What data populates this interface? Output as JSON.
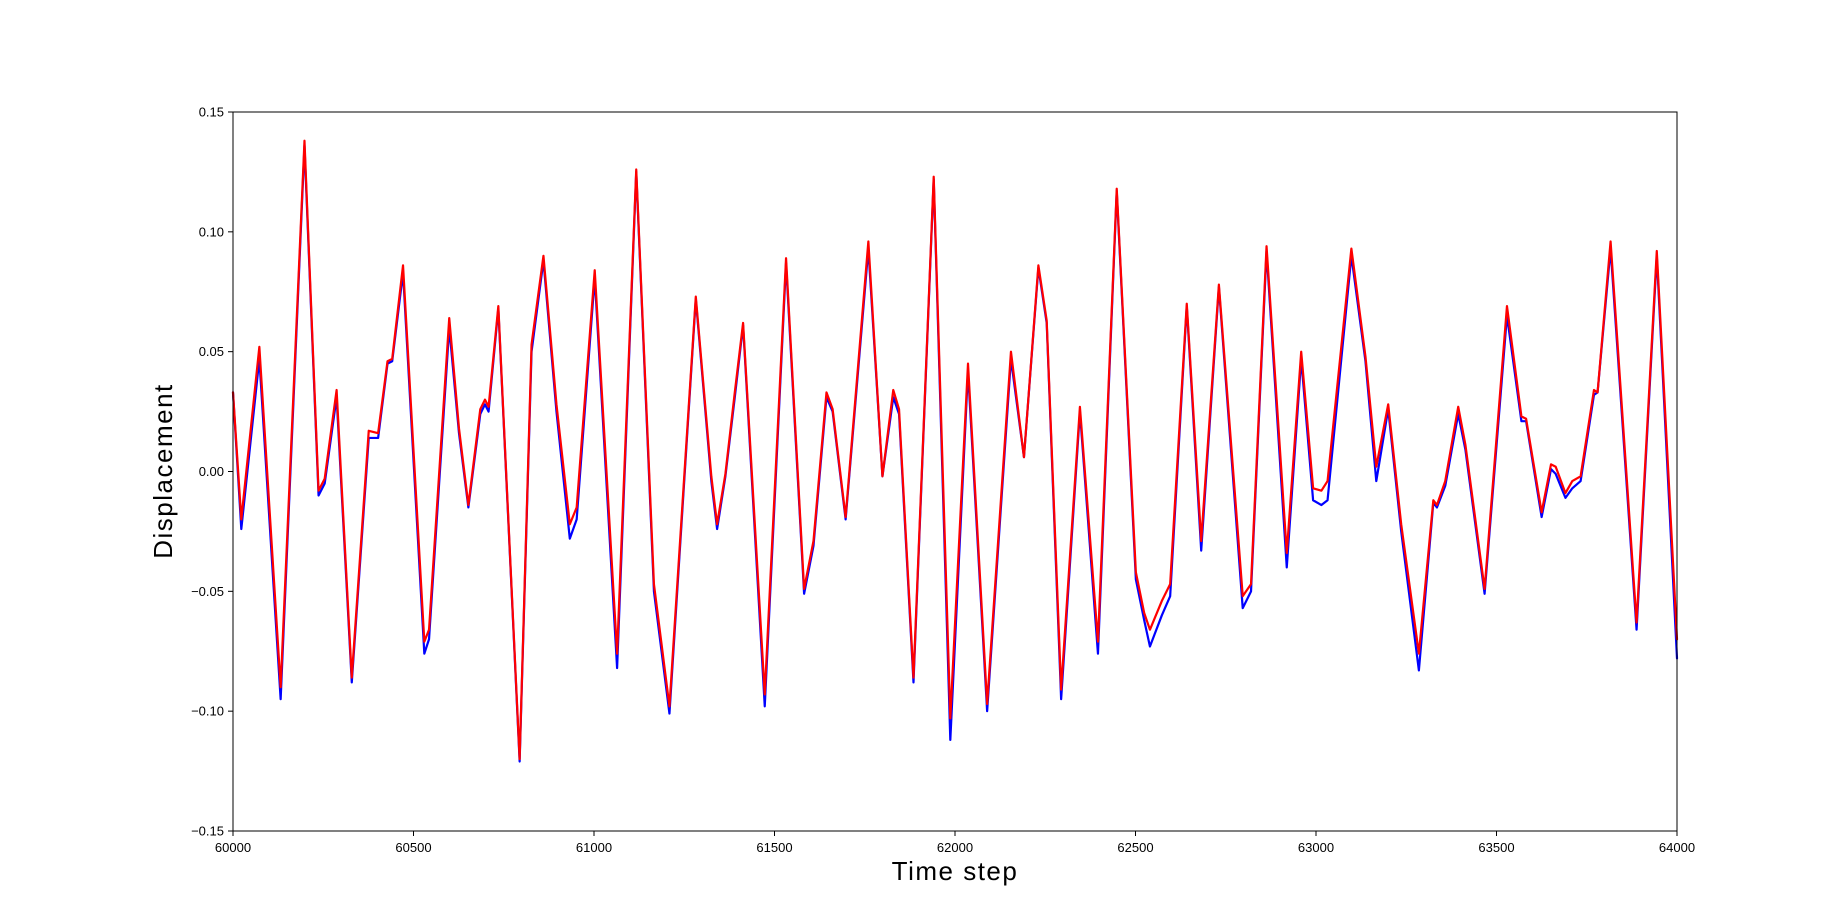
{
  "chart_data": {
    "type": "line",
    "x_label": "Time step",
    "y_label": "Displacement",
    "xlim": [
      60000,
      64000
    ],
    "ylim": [
      -0.15,
      0.15
    ],
    "xticks": [
      60000,
      60500,
      61000,
      61500,
      62000,
      62500,
      63000,
      63500,
      64000
    ],
    "yticks": [
      {
        "value": -0.15,
        "label": "−0.15"
      },
      {
        "value": -0.1,
        "label": "−0.10"
      },
      {
        "value": -0.05,
        "label": "−0.05"
      },
      {
        "value": 0,
        "label": "0.00"
      },
      {
        "value": 0.05,
        "label": "0.05"
      },
      {
        "value": 0.1,
        "label": "0.10"
      },
      {
        "value": 0.15,
        "label": "0.15"
      }
    ],
    "grid": false,
    "x": [
      60000,
      60023,
      60073,
      60132,
      60198,
      60237,
      60254,
      60287,
      60329,
      60376,
      60402,
      60428,
      60441,
      60471,
      60530,
      60543,
      60599,
      60626,
      60652,
      60685,
      60698,
      60708,
      60735,
      60794,
      60827,
      60860,
      60896,
      60933,
      60952,
      61002,
      61064,
      61117,
      61166,
      61209,
      61282,
      61325,
      61341,
      61364,
      61390,
      61413,
      61473,
      61532,
      61582,
      61608,
      61644,
      61661,
      61697,
      61760,
      61799,
      61829,
      61845,
      61885,
      61941,
      61987,
      62036,
      62089,
      62155,
      62191,
      62231,
      62254,
      62294,
      62346,
      62396,
      62448,
      62501,
      62524,
      62540,
      62573,
      62596,
      62642,
      62682,
      62731,
      62797,
      62820,
      62863,
      62919,
      62959,
      62992,
      63015,
      63032,
      63098,
      63137,
      63167,
      63200,
      63236,
      63285,
      63325,
      63335,
      63358,
      63394,
      63414,
      63467,
      63529,
      63569,
      63582,
      63625,
      63651,
      63664,
      63691,
      63710,
      63733,
      63770,
      63780,
      63816,
      63888,
      63944,
      64000
    ],
    "series": [
      {
        "color": "#0000ff",
        "values": [
          0.033,
          -0.024,
          0.047,
          -0.095,
          0.136,
          -0.01,
          -0.005,
          0.031,
          -0.088,
          0.014,
          0.014,
          0.045,
          0.046,
          0.083,
          -0.076,
          -0.07,
          0.06,
          0.016,
          -0.015,
          0.024,
          0.028,
          0.025,
          0.068,
          -0.121,
          0.05,
          0.088,
          0.025,
          -0.028,
          -0.02,
          0.081,
          -0.082,
          0.125,
          -0.05,
          -0.101,
          0.072,
          -0.004,
          -0.024,
          -0.002,
          0.031,
          0.061,
          -0.098,
          0.087,
          -0.051,
          -0.031,
          0.031,
          0.025,
          -0.02,
          0.093,
          -0.002,
          0.031,
          0.024,
          -0.088,
          0.122,
          -0.112,
          0.042,
          -0.1,
          0.047,
          0.006,
          0.085,
          0.062,
          -0.095,
          0.025,
          -0.076,
          0.117,
          -0.045,
          -0.062,
          -0.073,
          -0.06,
          -0.052,
          0.069,
          -0.033,
          0.077,
          -0.057,
          -0.05,
          0.092,
          -0.04,
          0.047,
          -0.012,
          -0.014,
          -0.012,
          0.09,
          0.046,
          -0.004,
          0.026,
          -0.025,
          -0.083,
          -0.013,
          -0.015,
          -0.006,
          0.024,
          0.009,
          -0.051,
          0.065,
          0.021,
          0.021,
          -0.019,
          0.001,
          -0.001,
          -0.011,
          -0.007,
          -0.004,
          0.032,
          0.033,
          0.093,
          -0.066,
          0.09,
          -0.078
        ]
      },
      {
        "color": "#ff0000",
        "values": [
          0.033,
          -0.02,
          0.052,
          -0.09,
          0.138,
          -0.008,
          -0.003,
          0.034,
          -0.086,
          0.017,
          0.016,
          0.046,
          0.047,
          0.086,
          -0.071,
          -0.066,
          0.064,
          0.018,
          -0.014,
          0.026,
          0.03,
          0.027,
          0.069,
          -0.12,
          0.053,
          0.09,
          0.028,
          -0.022,
          -0.015,
          0.084,
          -0.076,
          0.126,
          -0.047,
          -0.098,
          0.073,
          -0.002,
          -0.022,
          -0.001,
          0.033,
          0.062,
          -0.093,
          0.089,
          -0.049,
          -0.029,
          0.033,
          0.026,
          -0.019,
          0.096,
          -0.002,
          0.034,
          0.026,
          -0.086,
          0.123,
          -0.103,
          0.045,
          -0.097,
          0.05,
          0.006,
          0.086,
          0.063,
          -0.091,
          0.027,
          -0.071,
          0.118,
          -0.042,
          -0.059,
          -0.066,
          -0.054,
          -0.047,
          0.07,
          -0.029,
          0.078,
          -0.052,
          -0.047,
          0.094,
          -0.034,
          0.05,
          -0.007,
          -0.008,
          -0.004,
          0.093,
          0.048,
          0.002,
          0.028,
          -0.022,
          -0.076,
          -0.012,
          -0.014,
          -0.004,
          0.027,
          0.011,
          -0.049,
          0.069,
          0.023,
          0.022,
          -0.017,
          0.003,
          0.002,
          -0.009,
          -0.004,
          -0.002,
          0.034,
          0.033,
          0.096,
          -0.063,
          0.092,
          -0.07
        ]
      }
    ]
  }
}
